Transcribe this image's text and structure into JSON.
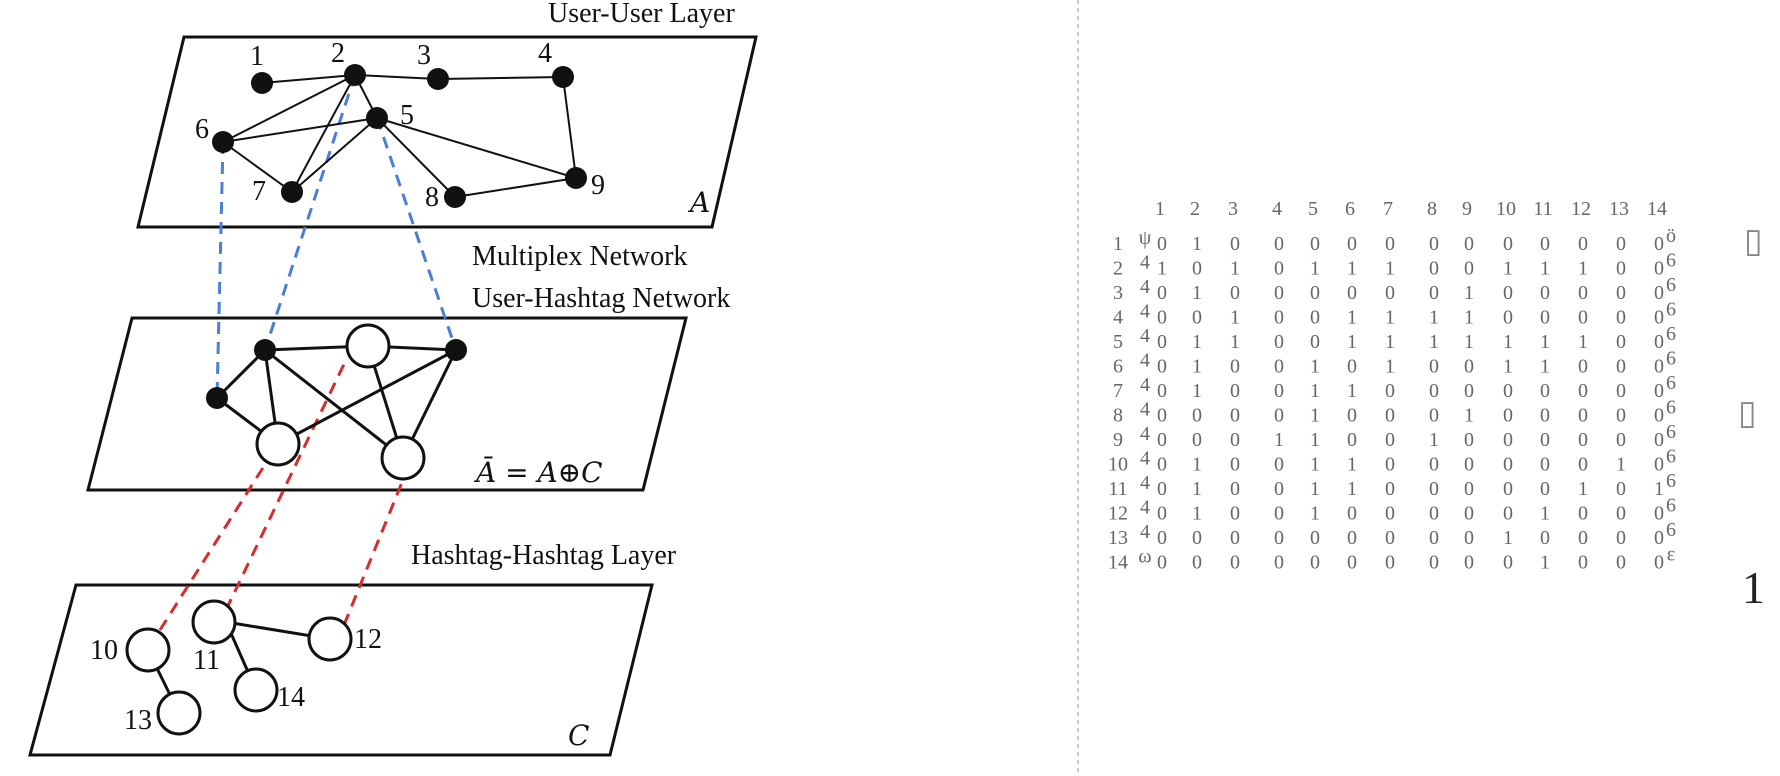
{
  "diagram": {
    "layers": {
      "top": {
        "title": "User-User Layer",
        "symbol": "A"
      },
      "middle": {
        "title_line1": "Multiplex Network",
        "title_line2": "User-Hashtag Network",
        "formula": "Ā = A⊕C"
      },
      "bottom": {
        "title": "Hashtag-Hashtag Layer",
        "symbol": "C"
      }
    },
    "user_nodes": [
      "1",
      "2",
      "3",
      "4",
      "5",
      "6",
      "7",
      "8",
      "9"
    ],
    "hashtag_nodes": [
      "10",
      "11",
      "12",
      "13",
      "14"
    ],
    "colors": {
      "user_link": "#4a7fd6",
      "hashtag_link": "#d62c2c",
      "ink": "#111111"
    }
  },
  "matrix": {
    "col_headers": [
      "1",
      "2",
      "3",
      "4",
      "5",
      "6",
      "7",
      "8",
      "9",
      "10",
      "11",
      "12",
      "13",
      "14"
    ],
    "row_headers": [
      "1",
      "2",
      "3",
      "4",
      "5",
      "6",
      "7",
      "8",
      "9",
      "10",
      "11",
      "12",
      "13",
      "14"
    ],
    "rows": [
      [
        "0",
        "1",
        "0",
        "0",
        "0",
        "0",
        "0",
        "0",
        "0",
        "0",
        "0",
        "0",
        "0",
        "0"
      ],
      [
        "1",
        "0",
        "1",
        "0",
        "1",
        "1",
        "1",
        "0",
        "0",
        "1",
        "1",
        "1",
        "0",
        "0"
      ],
      [
        "0",
        "1",
        "0",
        "0",
        "0",
        "0",
        "0",
        "0",
        "1",
        "0",
        "0",
        "0",
        "0",
        "0"
      ],
      [
        "0",
        "0",
        "1",
        "0",
        "0",
        "1",
        "1",
        "1",
        "1",
        "0",
        "0",
        "0",
        "0",
        "0"
      ],
      [
        "0",
        "1",
        "1",
        "0",
        "0",
        "1",
        "1",
        "1",
        "1",
        "1",
        "1",
        "1",
        "0",
        "0"
      ],
      [
        "0",
        "1",
        "0",
        "0",
        "1",
        "0",
        "1",
        "0",
        "0",
        "1",
        "1",
        "0",
        "0",
        "0"
      ],
      [
        "0",
        "1",
        "0",
        "0",
        "1",
        "1",
        "0",
        "0",
        "0",
        "0",
        "0",
        "0",
        "0",
        "0"
      ],
      [
        "0",
        "0",
        "0",
        "0",
        "1",
        "0",
        "0",
        "0",
        "1",
        "0",
        "0",
        "0",
        "0",
        "0"
      ],
      [
        "0",
        "0",
        "0",
        "1",
        "1",
        "0",
        "0",
        "1",
        "0",
        "0",
        "0",
        "0",
        "0",
        "0"
      ],
      [
        "0",
        "1",
        "0",
        "0",
        "1",
        "1",
        "0",
        "0",
        "0",
        "0",
        "0",
        "0",
        "1",
        "0"
      ],
      [
        "0",
        "1",
        "0",
        "0",
        "1",
        "1",
        "0",
        "0",
        "0",
        "0",
        "0",
        "1",
        "0",
        "1"
      ],
      [
        "0",
        "1",
        "0",
        "0",
        "1",
        "0",
        "0",
        "0",
        "0",
        "0",
        "1",
        "0",
        "0",
        "0"
      ],
      [
        "0",
        "0",
        "0",
        "0",
        "0",
        "0",
        "0",
        "0",
        "0",
        "1",
        "0",
        "0",
        "0",
        "0"
      ],
      [
        "0",
        "0",
        "0",
        "0",
        "0",
        "0",
        "0",
        "0",
        "0",
        "0",
        "1",
        "0",
        "0",
        "0"
      ]
    ],
    "left_ghost": [
      "ψ",
      "4",
      "4",
      "4",
      "4",
      "4",
      "4",
      "4",
      "4",
      "4",
      "4",
      "4",
      "4",
      "ω"
    ],
    "right_ghost": [
      "ö",
      "6",
      "6",
      "6",
      "6",
      "6",
      "6",
      "6",
      "6",
      "6",
      "6",
      "6",
      "6",
      "ε"
    ],
    "side_glyphs": [
      "▯",
      "▯",
      "1"
    ]
  }
}
